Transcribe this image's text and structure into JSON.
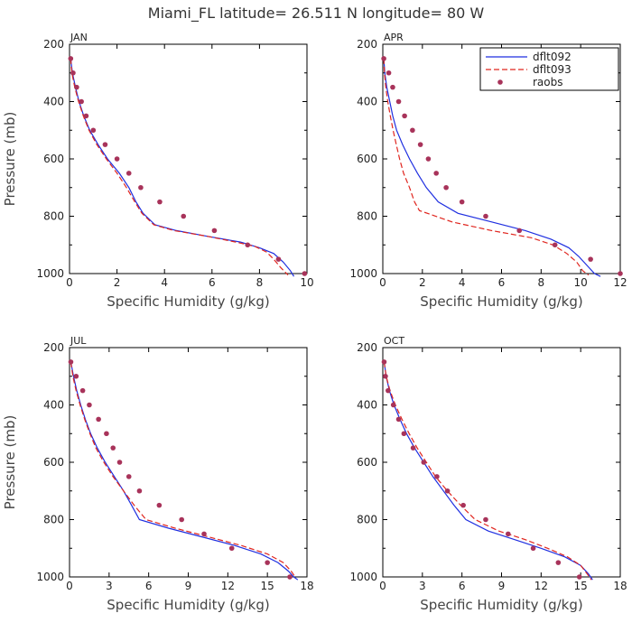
{
  "title": "Miami_FL   latitude= 26.511 N longitude= 80 W",
  "colors": {
    "dflt092": "#1f2fe0",
    "dflt093": "#e0261f",
    "raobs": "#a8335a",
    "axis": "#000000"
  },
  "chart_data": [
    {
      "type": "line",
      "panel_label": "JAN",
      "xlabel": "Specific Humidity (g/kg)",
      "ylabel": "Pressure (mb)",
      "xlim": [
        0,
        10
      ],
      "ylim": [
        200,
        1000
      ],
      "y_inverted": true,
      "xticks": [
        0,
        2,
        4,
        6,
        8,
        10
      ],
      "yticks": [
        200,
        400,
        600,
        800,
        1000
      ],
      "legend": null,
      "series": [
        {
          "name": "dflt092",
          "style": "solid",
          "x": [
            0.05,
            0.12,
            0.25,
            0.4,
            0.6,
            0.85,
            1.2,
            1.6,
            2.1,
            2.5,
            2.8,
            3.1,
            3.6,
            4.5,
            5.8,
            7.2,
            8.0,
            8.6,
            9.0,
            9.3,
            9.45
          ],
          "y": [
            250,
            300,
            350,
            400,
            450,
            500,
            550,
            600,
            650,
            700,
            750,
            790,
            830,
            850,
            870,
            890,
            910,
            930,
            960,
            990,
            1010
          ]
        },
        {
          "name": "dflt093",
          "style": "dashed",
          "x": [
            0.05,
            0.1,
            0.22,
            0.38,
            0.58,
            0.82,
            1.15,
            1.55,
            2.0,
            2.4,
            2.75,
            3.05,
            3.55,
            4.4,
            5.8,
            7.0,
            7.8,
            8.3,
            8.6,
            8.9,
            9.2
          ],
          "y": [
            250,
            300,
            350,
            400,
            450,
            500,
            550,
            600,
            650,
            700,
            750,
            790,
            830,
            850,
            870,
            890,
            905,
            925,
            950,
            980,
            1005
          ]
        },
        {
          "name": "raobs",
          "style": "points",
          "x": [
            0.05,
            0.15,
            0.3,
            0.5,
            0.7,
            1.0,
            1.5,
            2.0,
            2.5,
            3.0,
            3.8,
            4.8,
            6.1,
            7.5,
            8.8,
            9.9
          ],
          "y": [
            250,
            300,
            350,
            400,
            450,
            500,
            550,
            600,
            650,
            700,
            750,
            800,
            850,
            900,
            950,
            1000
          ]
        }
      ]
    },
    {
      "type": "line",
      "panel_label": "APR",
      "xlabel": "Specific Humidity (g/kg)",
      "ylabel": "",
      "xlim": [
        0,
        12
      ],
      "ylim": [
        200,
        1000
      ],
      "y_inverted": true,
      "xticks": [
        0,
        2,
        4,
        6,
        8,
        10,
        12
      ],
      "yticks": [
        200,
        400,
        600,
        800,
        1000
      ],
      "legend": "top-right",
      "series": [
        {
          "name": "dflt092",
          "style": "solid",
          "x": [
            0.05,
            0.1,
            0.2,
            0.35,
            0.5,
            0.7,
            1.0,
            1.35,
            1.75,
            2.2,
            2.8,
            3.8,
            5.5,
            7.2,
            8.5,
            9.4,
            9.9,
            10.3,
            10.7,
            11.0
          ],
          "y": [
            250,
            300,
            350,
            400,
            450,
            500,
            550,
            600,
            650,
            700,
            750,
            790,
            820,
            850,
            880,
            910,
            940,
            970,
            1000,
            1010
          ]
        },
        {
          "name": "dflt093",
          "style": "dashed",
          "x": [
            0.05,
            0.08,
            0.15,
            0.25,
            0.38,
            0.52,
            0.68,
            0.85,
            1.05,
            1.35,
            1.6,
            1.85,
            3.5,
            5.5,
            7.5,
            8.6,
            9.3,
            9.8,
            10.1,
            10.4
          ],
          "y": [
            250,
            300,
            350,
            400,
            450,
            500,
            550,
            600,
            650,
            700,
            750,
            780,
            820,
            850,
            875,
            900,
            930,
            960,
            990,
            1005
          ]
        },
        {
          "name": "raobs",
          "style": "points",
          "x": [
            0.05,
            0.3,
            0.5,
            0.8,
            1.1,
            1.5,
            1.9,
            2.3,
            2.7,
            3.2,
            4.0,
            5.2,
            6.9,
            8.7,
            10.5,
            12.0
          ],
          "y": [
            250,
            300,
            350,
            400,
            450,
            500,
            550,
            600,
            650,
            700,
            750,
            800,
            850,
            900,
            950,
            1000
          ]
        }
      ]
    },
    {
      "type": "line",
      "panel_label": "JUL",
      "xlabel": "Specific Humidity (g/kg)",
      "ylabel": "Pressure (mb)",
      "xlim": [
        0,
        18
      ],
      "ylim": [
        200,
        1000
      ],
      "y_inverted": true,
      "xticks": [
        0,
        3,
        6,
        9,
        12,
        15,
        18
      ],
      "yticks": [
        200,
        400,
        600,
        800,
        1000
      ],
      "legend": null,
      "series": [
        {
          "name": "dflt092",
          "style": "solid",
          "x": [
            0.1,
            0.3,
            0.55,
            0.85,
            1.2,
            1.6,
            2.1,
            2.7,
            3.4,
            4.1,
            4.7,
            5.3,
            7.5,
            10.0,
            12.5,
            14.5,
            15.8,
            16.6,
            17.0,
            17.3
          ],
          "y": [
            250,
            300,
            350,
            400,
            450,
            500,
            550,
            600,
            650,
            700,
            750,
            800,
            830,
            860,
            890,
            920,
            950,
            980,
            1000,
            1010
          ]
        },
        {
          "name": "dflt093",
          "style": "dashed",
          "x": [
            0.1,
            0.25,
            0.5,
            0.8,
            1.15,
            1.55,
            2.0,
            2.6,
            3.3,
            4.1,
            4.9,
            5.8,
            8.0,
            10.5,
            13.0,
            15.0,
            16.2,
            16.8,
            17.1
          ],
          "y": [
            250,
            300,
            350,
            400,
            450,
            500,
            550,
            600,
            650,
            700,
            750,
            800,
            830,
            860,
            890,
            920,
            950,
            980,
            1000
          ]
        },
        {
          "name": "raobs",
          "style": "points",
          "x": [
            0.1,
            0.5,
            1.0,
            1.5,
            2.2,
            2.8,
            3.3,
            3.8,
            4.5,
            5.3,
            6.8,
            8.5,
            10.2,
            12.3,
            15.0,
            16.7
          ],
          "y": [
            250,
            300,
            350,
            400,
            450,
            500,
            550,
            600,
            650,
            700,
            750,
            800,
            850,
            900,
            950,
            1000
          ]
        }
      ]
    },
    {
      "type": "line",
      "panel_label": "OCT",
      "xlabel": "Specific Humidity (g/kg)",
      "ylabel": "",
      "xlim": [
        0,
        18
      ],
      "ylim": [
        200,
        1000
      ],
      "y_inverted": true,
      "xticks": [
        0,
        3,
        6,
        9,
        12,
        15,
        18
      ],
      "yticks": [
        200,
        400,
        600,
        800,
        1000
      ],
      "legend": null,
      "series": [
        {
          "name": "dflt092",
          "style": "solid",
          "x": [
            0.1,
            0.25,
            0.5,
            0.85,
            1.3,
            1.8,
            2.4,
            3.1,
            3.8,
            4.6,
            5.4,
            6.3,
            8.0,
            10.0,
            12.0,
            13.8,
            15.0,
            15.6,
            15.9
          ],
          "y": [
            250,
            300,
            350,
            400,
            450,
            500,
            550,
            600,
            650,
            700,
            750,
            800,
            840,
            870,
            900,
            930,
            960,
            990,
            1010
          ]
        },
        {
          "name": "dflt093",
          "style": "dashed",
          "x": [
            0.1,
            0.25,
            0.55,
            0.95,
            1.45,
            2.0,
            2.6,
            3.3,
            4.0,
            4.9,
            5.9,
            7.0,
            8.8,
            10.8,
            12.5,
            14.0,
            15.0,
            15.5,
            15.8
          ],
          "y": [
            250,
            300,
            350,
            400,
            450,
            500,
            550,
            600,
            650,
            700,
            750,
            800,
            840,
            870,
            900,
            930,
            960,
            990,
            1010
          ]
        },
        {
          "name": "raobs",
          "style": "points",
          "x": [
            0.1,
            0.2,
            0.4,
            0.8,
            1.2,
            1.6,
            2.3,
            3.1,
            4.1,
            4.9,
            6.1,
            7.8,
            9.5,
            11.4,
            13.3,
            14.9
          ],
          "y": [
            250,
            300,
            350,
            400,
            450,
            500,
            550,
            600,
            650,
            700,
            750,
            800,
            850,
            900,
            950,
            1000
          ]
        }
      ]
    }
  ]
}
